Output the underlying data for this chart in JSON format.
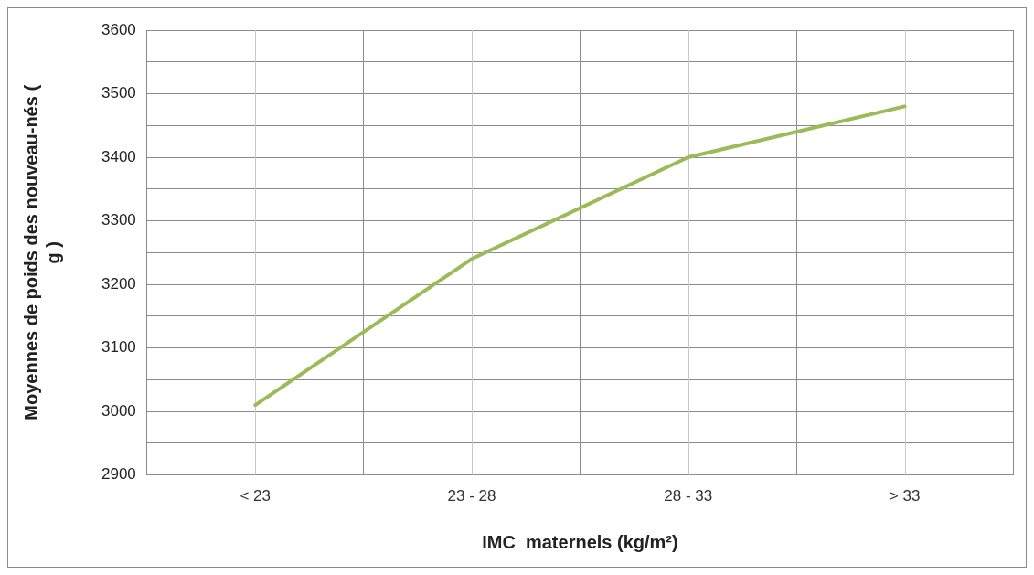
{
  "chart_data": {
    "type": "line",
    "xlabel": "IMC  maternels (kg/m²)",
    "ylabel": "Moyennes de poids des nouveau-nés ( g )",
    "categories": [
      "< 23",
      "23 - 28",
      "28 - 33",
      "> 33"
    ],
    "series": [
      {
        "color": "#9bbb59",
        "values": [
          3010,
          3240,
          3400,
          3480
        ]
      }
    ],
    "ylim": [
      2900,
      3600
    ],
    "yticks": [
      2900,
      {
        "value": 2950,
        "label": null
      },
      3000,
      {
        "value": 3050,
        "label": null
      },
      3100,
      {
        "value": 3150,
        "label": null
      },
      3200,
      {
        "value": 3250,
        "label": null
      },
      3300,
      {
        "value": 3350,
        "label": null
      },
      3400,
      {
        "value": 3450,
        "label": null
      },
      3500,
      {
        "value": 3550,
        "label": null
      },
      3600
    ],
    "grid": true,
    "legend": false,
    "marker": "none",
    "line_style": "solid"
  }
}
